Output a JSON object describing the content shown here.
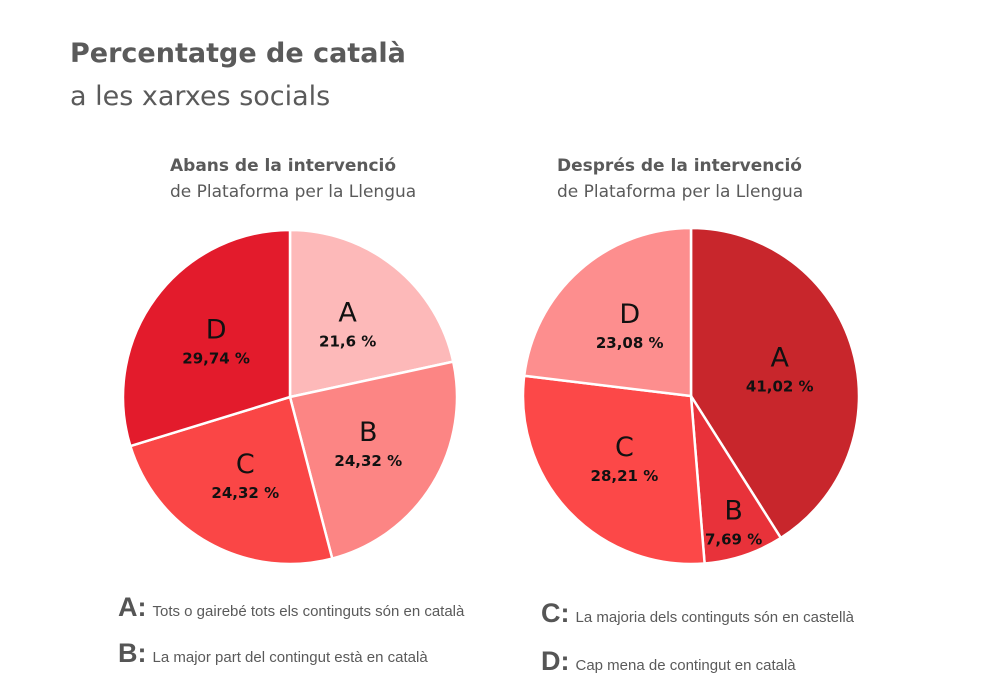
{
  "title": "Percentatge de català",
  "subtitle": "a les xarxes socials",
  "chart_data": [
    {
      "type": "pie",
      "title": "Abans de la intervenció",
      "subtitle": "de Plataforma per la Llengua",
      "categories": [
        "A",
        "B",
        "C",
        "D"
      ],
      "values": [
        21.6,
        24.32,
        24.32,
        29.74
      ],
      "value_labels": [
        "21,6 %",
        "24,32 %",
        "24,32 %",
        "29,74 %"
      ],
      "colors": [
        "#fdb9b9",
        "#fc8584",
        "#fa4646",
        "#e31b2c"
      ]
    },
    {
      "type": "pie",
      "title": "Després de la intervenció",
      "subtitle": "de Plataforma per la Llengua",
      "categories": [
        "A",
        "B",
        "C",
        "D"
      ],
      "values": [
        41.02,
        7.69,
        28.21,
        23.08
      ],
      "value_labels": [
        "41,02 %",
        "7,69 %",
        "28,21 %",
        "23,08 %"
      ],
      "colors": [
        "#c8262c",
        "#e8323a",
        "#fc4848",
        "#fd8e8e"
      ]
    }
  ],
  "legend": [
    {
      "key": "A:",
      "text": "Tots o gairebé tots els continguts són en català"
    },
    {
      "key": "B:",
      "text": "La major part del contingut està en català"
    },
    {
      "key": "C:",
      "text": "La majoria dels continguts són en castellà"
    },
    {
      "key": "D:",
      "text": "Cap mena de contingut en català"
    }
  ]
}
